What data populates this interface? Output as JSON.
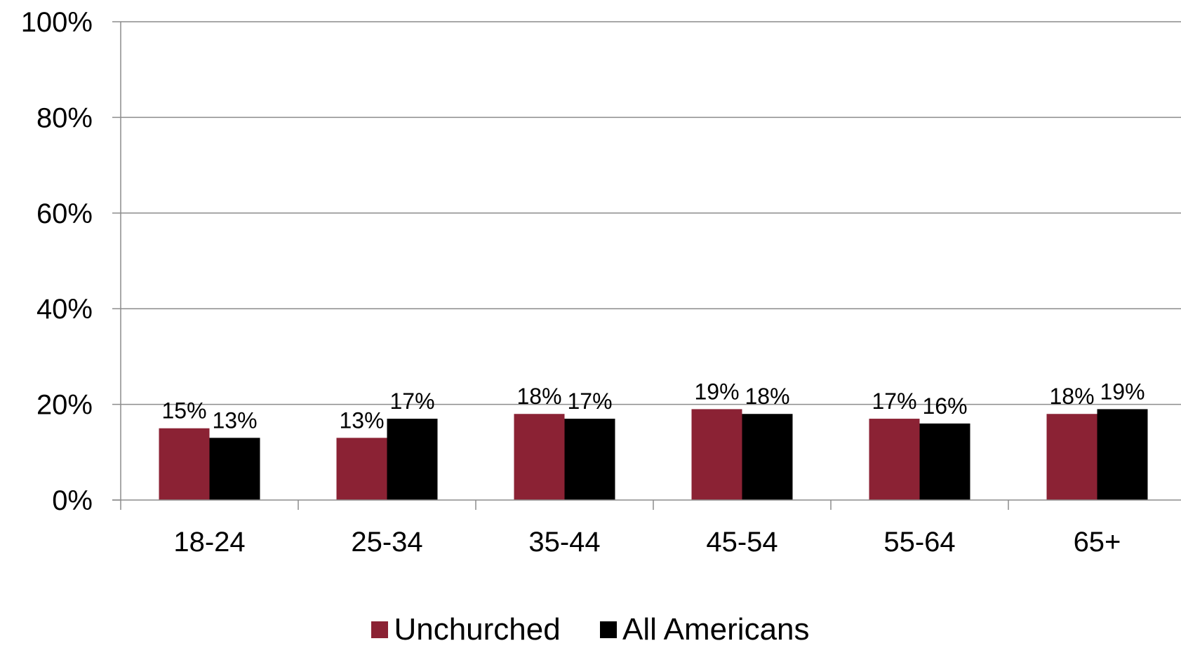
{
  "chart_data": {
    "type": "bar",
    "categories": [
      "18-24",
      "25-34",
      "35-44",
      "45-54",
      "55-64",
      "65+"
    ],
    "series": [
      {
        "name": "Unchurched",
        "color": "#8B2234",
        "values": [
          15,
          13,
          18,
          19,
          17,
          18
        ],
        "labels": [
          "15%",
          "13%",
          "18%",
          "19%",
          "17%",
          "18%"
        ]
      },
      {
        "name": "All Americans",
        "color": "#000000",
        "values": [
          13,
          17,
          17,
          18,
          16,
          19
        ],
        "labels": [
          "13%",
          "17%",
          "17%",
          "18%",
          "16%",
          "19%"
        ]
      }
    ],
    "ylim": [
      0,
      100
    ],
    "yticks": [
      "0%",
      "20%",
      "40%",
      "60%",
      "80%",
      "100%"
    ],
    "grid": true,
    "legend_position": "bottom",
    "title": "",
    "xlabel": "",
    "ylabel": ""
  }
}
